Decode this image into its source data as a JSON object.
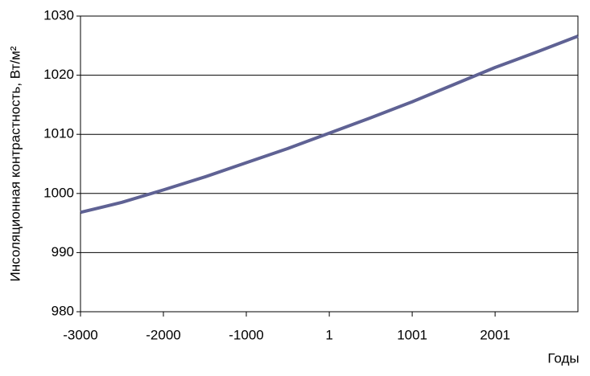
{
  "chart_data": {
    "type": "line",
    "x_label": "Годы",
    "y_label": "Инсоляционная контрастность, Вт/м²",
    "x": [
      -3000,
      -2500,
      -2000,
      -1500,
      -1000,
      -500,
      0,
      500,
      1000,
      1500,
      2000,
      2500,
      3000
    ],
    "series": [
      {
        "color": "#5f6294",
        "values": [
          996.8,
          998.5,
          1000.6,
          1002.8,
          1005.2,
          1007.6,
          1010.2,
          1012.8,
          1015.5,
          1018.4,
          1021.3,
          1023.9,
          1026.6
        ]
      }
    ],
    "xlim": [
      -3000,
      3000
    ],
    "xticks": [
      -3000,
      -2000,
      -1000,
      1,
      1001,
      2001
    ],
    "ylim": [
      980,
      1030
    ],
    "yticks": [
      980,
      990,
      1000,
      1010,
      1020,
      1030
    ],
    "grid": true
  }
}
